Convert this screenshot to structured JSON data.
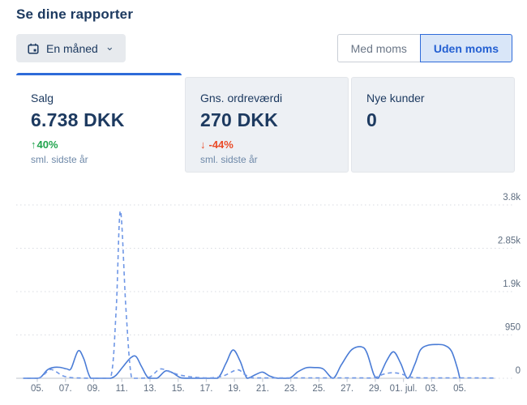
{
  "page": {
    "title": "Se dine rapporter"
  },
  "toolbar": {
    "period_selector": {
      "label": "En måned",
      "icon": "calendar-icon",
      "chevron": "⌄"
    },
    "vat_toggle": {
      "options": [
        {
          "label": "Med moms",
          "active": false
        },
        {
          "label": "Uden moms",
          "active": true
        }
      ]
    }
  },
  "stat_cards": [
    {
      "title": "Salg",
      "value": "6.738 DKK",
      "arrow": "↑",
      "change": "40%",
      "direction": "up",
      "compare_label": "sml. sidste år",
      "active": true
    },
    {
      "title": "Gns. ordreværdi",
      "value": "270 DKK",
      "arrow": "↓",
      "change": "-44%",
      "direction": "down",
      "compare_label": "sml. sidste år",
      "active": false
    },
    {
      "title": "Nye kunder",
      "value": "0",
      "active": false
    }
  ],
  "colors": {
    "accent_blue": "#2e6bd9",
    "accent_blue_bg": "#d9e6f8",
    "navy": "#1d3a60",
    "positive_green": "#22a44e",
    "negative_red": "#ea4a26",
    "muted_blue": "#6d88a8"
  },
  "chart_data": {
    "type": "line",
    "title": "",
    "xlabel": "",
    "ylabel": "",
    "grid": true,
    "legend": "none",
    "y_axis": {
      "side": "right",
      "max": 3800,
      "tick_values": [
        0,
        950,
        1900,
        2850,
        3800
      ],
      "tick_labels": [
        "0",
        "950",
        "1.9k",
        "2.85k",
        "3.8k"
      ]
    },
    "x_axis": {
      "unit": "day (5 = 05. jun, 31 = 01. jul)",
      "tick_days": [
        5,
        7,
        9,
        11,
        13,
        15,
        17,
        19,
        21,
        23,
        25,
        27,
        29,
        31,
        33,
        35
      ],
      "tick_labels": [
        "05.",
        "07.",
        "09.",
        "11.",
        "13.",
        "15.",
        "17.",
        "19.",
        "21.",
        "23.",
        "25.",
        "27.",
        "29.",
        "01. jul.",
        "03.",
        "05."
      ]
    },
    "grid_color": "#d8dbe2",
    "axis_color": "#c9cfd8",
    "label_color": "#5e6d80",
    "series": [
      {
        "name": "current-period",
        "style": "solid",
        "color": "#4a7cd6",
        "points": [
          [
            4,
            0
          ],
          [
            5,
            0
          ],
          [
            5.3,
            40
          ],
          [
            5.7,
            180
          ],
          [
            6.1,
            235
          ],
          [
            6.6,
            240
          ],
          [
            7.1,
            205
          ],
          [
            7.4,
            215
          ],
          [
            7.9,
            600
          ],
          [
            8.3,
            430
          ],
          [
            8.8,
            0
          ],
          [
            9.6,
            0
          ],
          [
            10.2,
            0
          ],
          [
            10.6,
            70
          ],
          [
            11.1,
            260
          ],
          [
            11.6,
            440
          ],
          [
            12,
            480
          ],
          [
            12.4,
            260
          ],
          [
            12.9,
            0
          ],
          [
            13.5,
            0
          ],
          [
            14.1,
            160
          ],
          [
            14.6,
            120
          ],
          [
            15.2,
            10
          ],
          [
            15.9,
            0
          ],
          [
            16.8,
            0
          ],
          [
            17.8,
            0
          ],
          [
            18.4,
            330
          ],
          [
            18.9,
            620
          ],
          [
            19.4,
            380
          ],
          [
            19.9,
            0
          ],
          [
            20.5,
            80
          ],
          [
            21,
            135
          ],
          [
            21.5,
            50
          ],
          [
            22.1,
            0
          ],
          [
            22.9,
            0
          ],
          [
            23.5,
            140
          ],
          [
            24.1,
            230
          ],
          [
            24.7,
            235
          ],
          [
            25.3,
            205
          ],
          [
            26,
            0
          ],
          [
            26.6,
            300
          ],
          [
            27.3,
            620
          ],
          [
            28,
            690
          ],
          [
            28.4,
            560
          ],
          [
            28.9,
            80
          ],
          [
            29.2,
            0
          ],
          [
            29.8,
            380
          ],
          [
            30.3,
            580
          ],
          [
            30.8,
            330
          ],
          [
            31.3,
            0
          ],
          [
            31.8,
            300
          ],
          [
            32.2,
            620
          ],
          [
            32.7,
            720
          ],
          [
            33.3,
            740
          ],
          [
            33.9,
            725
          ],
          [
            34.4,
            600
          ],
          [
            34.8,
            250
          ],
          [
            35,
            0
          ]
        ]
      },
      {
        "name": "previous-period",
        "style": "dashed",
        "color": "#6f97e6",
        "points": [
          [
            4,
            0
          ],
          [
            5,
            0
          ],
          [
            5.4,
            60
          ],
          [
            5.9,
            190
          ],
          [
            6.3,
            150
          ],
          [
            6.8,
            55
          ],
          [
            7.4,
            15
          ],
          [
            8.2,
            5
          ],
          [
            9.2,
            0
          ],
          [
            10.2,
            0
          ],
          [
            10.6,
            1500
          ],
          [
            10.9,
            3670
          ],
          [
            11.3,
            1500
          ],
          [
            11.7,
            0
          ],
          [
            12.3,
            0
          ],
          [
            13,
            30
          ],
          [
            13.7,
            200
          ],
          [
            14.3,
            155
          ],
          [
            15,
            80
          ],
          [
            15.7,
            40
          ],
          [
            16.5,
            15
          ],
          [
            17.4,
            10
          ],
          [
            18.2,
            50
          ],
          [
            19.2,
            185
          ],
          [
            19.7,
            90
          ],
          [
            20.2,
            15
          ],
          [
            21,
            8
          ],
          [
            22,
            8
          ],
          [
            23,
            8
          ],
          [
            24,
            8
          ],
          [
            25,
            8
          ],
          [
            26,
            8
          ],
          [
            27,
            8
          ],
          [
            28,
            8
          ],
          [
            28.9,
            12
          ],
          [
            29.6,
            90
          ],
          [
            30.2,
            120
          ],
          [
            30.8,
            100
          ],
          [
            31.4,
            35
          ],
          [
            32,
            12
          ],
          [
            33,
            8
          ],
          [
            34,
            8
          ],
          [
            35,
            8
          ],
          [
            36,
            8
          ],
          [
            37.4,
            5
          ]
        ]
      }
    ]
  }
}
